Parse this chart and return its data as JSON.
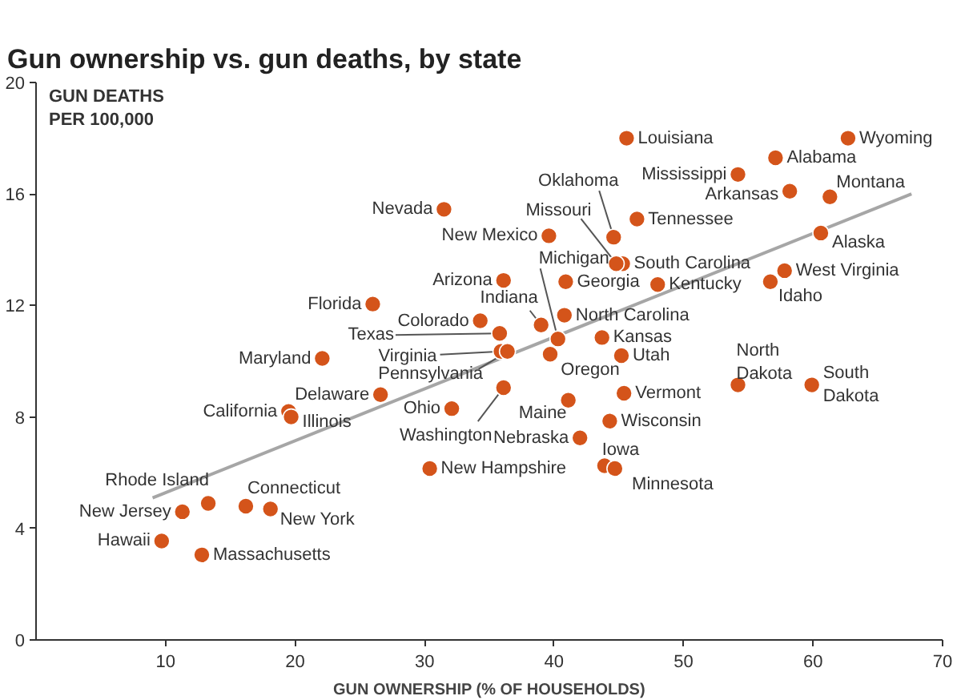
{
  "chart_data": {
    "type": "scatter",
    "title": "Gun ownership vs. gun deaths, by state",
    "xlabel": "GUN OWNERSHIP (% OF HOUSEHOLDS)",
    "ylabel": "GUN DEATHS PER 100,000",
    "xlim": [
      0,
      70
    ],
    "ylim": [
      0,
      20
    ],
    "xticks": [
      10,
      20,
      30,
      40,
      50,
      60,
      70
    ],
    "yticks": [
      0,
      4,
      8,
      12,
      16,
      20
    ],
    "grid": false,
    "series": [
      {
        "marker": "circle",
        "color": "#d4541a",
        "x": [
          9.7,
          12.8,
          11.3,
          13.3,
          16.2,
          18.1,
          19.5,
          19.7,
          22.1,
          26.6,
          32.1,
          30.4,
          31.5,
          26.0,
          34.3,
          35.8,
          35.9,
          36.4,
          36.1,
          45.6,
          62.7,
          57.1,
          54.2,
          58.2,
          61.3,
          46.4,
          39.6,
          44.6,
          60.6,
          45.3,
          44.8,
          57.8,
          56.7,
          36.1,
          40.9,
          48.0,
          40.8,
          39.0,
          40.3,
          43.7,
          39.7,
          45.2,
          41.1,
          45.4,
          44.3,
          42.0,
          43.9,
          44.7,
          54.2,
          59.9
        ],
        "values": [
          3.55,
          3.05,
          4.6,
          4.9,
          4.8,
          4.7,
          8.2,
          8.0,
          10.1,
          8.8,
          8.3,
          6.15,
          15.45,
          12.05,
          11.45,
          11.0,
          10.35,
          10.35,
          9.05,
          18.0,
          18.0,
          17.3,
          16.7,
          16.1,
          15.9,
          15.1,
          14.5,
          14.45,
          14.6,
          13.5,
          13.5,
          13.25,
          12.85,
          12.9,
          12.85,
          12.75,
          11.65,
          11.3,
          10.8,
          10.85,
          10.25,
          10.2,
          8.6,
          8.85,
          7.85,
          7.25,
          6.25,
          6.15,
          9.15,
          9.15
        ]
      },
      {
        "type": "line",
        "color": "#a6a6a6",
        "x": [
          9.0,
          67.6
        ],
        "values": [
          5.1,
          16.0
        ]
      }
    ],
    "annotations": [
      {
        "text": "Hawaii",
        "x": 9.7,
        "y": 3.55
      },
      {
        "text": "Massachusetts",
        "x": 12.8,
        "y": 3.05
      },
      {
        "text": "New Jersey",
        "x": 11.3,
        "y": 4.6
      },
      {
        "text": "Rhode Island",
        "x": 13.3,
        "y": 4.9
      },
      {
        "text": "Connecticut",
        "x": 16.2,
        "y": 4.8
      },
      {
        "text": "New York",
        "x": 18.1,
        "y": 4.7
      },
      {
        "text": "California",
        "x": 19.5,
        "y": 8.2
      },
      {
        "text": "Illinois",
        "x": 19.7,
        "y": 8.0
      },
      {
        "text": "Maryland",
        "x": 22.1,
        "y": 10.1
      },
      {
        "text": "Delaware",
        "x": 26.6,
        "y": 8.8
      },
      {
        "text": "Ohio",
        "x": 32.1,
        "y": 8.3
      },
      {
        "text": "New Hampshire",
        "x": 30.4,
        "y": 6.15
      },
      {
        "text": "Nevada",
        "x": 31.5,
        "y": 15.45
      },
      {
        "text": "Florida",
        "x": 26.0,
        "y": 12.05
      },
      {
        "text": "Colorado",
        "x": 34.3,
        "y": 11.45
      },
      {
        "text": "Texas",
        "x": 35.8,
        "y": 11.0
      },
      {
        "text": "Virginia",
        "x": 35.9,
        "y": 10.35
      },
      {
        "text": "Pennsylvania",
        "x": 36.4,
        "y": 10.35
      },
      {
        "text": "Washington",
        "x": 36.1,
        "y": 9.05
      },
      {
        "text": "Louisiana",
        "x": 45.6,
        "y": 18.0
      },
      {
        "text": "Wyoming",
        "x": 62.7,
        "y": 18.0
      },
      {
        "text": "Alabama",
        "x": 57.1,
        "y": 17.3
      },
      {
        "text": "Mississippi",
        "x": 54.2,
        "y": 16.7
      },
      {
        "text": "Arkansas",
        "x": 58.2,
        "y": 16.1
      },
      {
        "text": "Montana",
        "x": 61.3,
        "y": 15.9
      },
      {
        "text": "Tennessee",
        "x": 46.4,
        "y": 15.1
      },
      {
        "text": "New Mexico",
        "x": 39.6,
        "y": 14.5
      },
      {
        "text": "Oklahoma",
        "x": 44.6,
        "y": 14.45
      },
      {
        "text": "Alaska",
        "x": 60.6,
        "y": 14.6
      },
      {
        "text": "South Carolina",
        "x": 45.3,
        "y": 13.5
      },
      {
        "text": "Missouri",
        "x": 44.8,
        "y": 13.5
      },
      {
        "text": "West Virginia",
        "x": 57.8,
        "y": 13.25
      },
      {
        "text": "Idaho",
        "x": 56.7,
        "y": 12.85
      },
      {
        "text": "Arizona",
        "x": 36.1,
        "y": 12.9
      },
      {
        "text": "Georgia",
        "x": 40.9,
        "y": 12.85
      },
      {
        "text": "Kentucky",
        "x": 48.0,
        "y": 12.75
      },
      {
        "text": "North Carolina",
        "x": 40.8,
        "y": 11.65
      },
      {
        "text": "Indiana",
        "x": 39.0,
        "y": 11.3
      },
      {
        "text": "Michigan",
        "x": 40.3,
        "y": 10.8
      },
      {
        "text": "Kansas",
        "x": 43.7,
        "y": 10.85
      },
      {
        "text": "Oregon",
        "x": 39.7,
        "y": 10.25
      },
      {
        "text": "Utah",
        "x": 45.2,
        "y": 10.2
      },
      {
        "text": "Maine",
        "x": 41.1,
        "y": 8.6
      },
      {
        "text": "Vermont",
        "x": 45.4,
        "y": 8.85
      },
      {
        "text": "Wisconsin",
        "x": 44.3,
        "y": 7.85
      },
      {
        "text": "Nebraska",
        "x": 42.0,
        "y": 7.25
      },
      {
        "text": "Iowa",
        "x": 43.9,
        "y": 6.25
      },
      {
        "text": "Minnesota",
        "x": 44.7,
        "y": 6.15
      },
      {
        "text": "North Dakota",
        "x": 54.2,
        "y": 9.15
      },
      {
        "text": "South Dakota",
        "x": 59.9,
        "y": 9.15
      }
    ]
  }
}
